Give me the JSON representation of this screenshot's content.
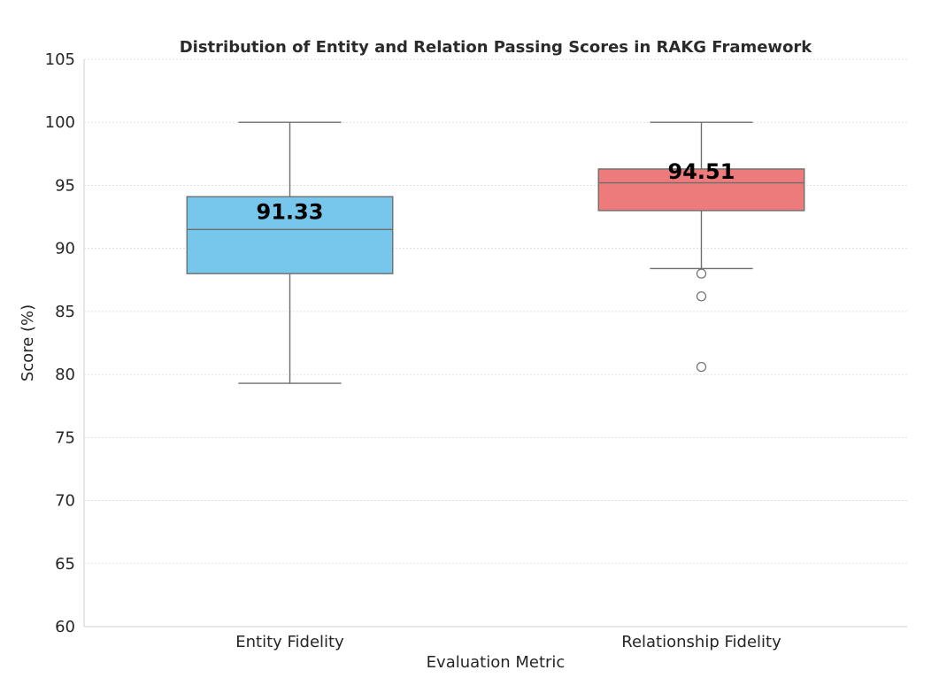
{
  "chart_data": {
    "type": "box",
    "title": "Distribution of Entity and Relation Passing Scores in RAKG Framework",
    "xlabel": "Evaluation Metric",
    "ylabel": "Score (%)",
    "ylim": [
      60,
      105
    ],
    "yticks": [
      "60",
      "65",
      "70",
      "75",
      "80",
      "85",
      "90",
      "95",
      "100",
      "105"
    ],
    "grid": true,
    "categories": [
      "Entity Fidelity",
      "Relationship Fidelity"
    ],
    "boxes": [
      {
        "name": "Entity Fidelity",
        "whisker_low": 79.3,
        "q1": 88.0,
        "median": 91.5,
        "q3": 94.1,
        "whisker_high": 100.0,
        "outliers": [],
        "mean": 91.33,
        "mean_label": "91.33",
        "color": "#77c6ec"
      },
      {
        "name": "Relationship Fidelity",
        "whisker_low": 88.4,
        "q1": 93.0,
        "median": 95.2,
        "q3": 96.3,
        "whisker_high": 100.0,
        "outliers": [
          88.0,
          86.2,
          80.6
        ],
        "mean": 94.51,
        "mean_label": "94.51",
        "color": "#ee7b7b"
      }
    ]
  }
}
